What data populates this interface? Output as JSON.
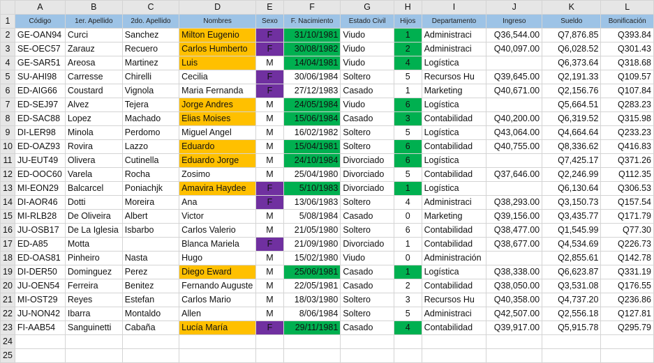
{
  "columns": [
    "A",
    "B",
    "C",
    "D",
    "E",
    "F",
    "G",
    "H",
    "I",
    "J",
    "K",
    "L"
  ],
  "headers": [
    "Código",
    "1er. Apellido",
    "2do. Apellido",
    "Nombres",
    "Sexo",
    "F. Nacimiento",
    "Estado Civil",
    "Hijos",
    "Departamento",
    "Ingreso",
    "Sueldo",
    "Bonificación"
  ],
  "row_numbers": [
    "1",
    "2",
    "3",
    "4",
    "5",
    "6",
    "7",
    "8",
    "9",
    "10",
    "11",
    "12",
    "13",
    "14",
    "15",
    "16",
    "17",
    "18",
    "19",
    "20",
    "21",
    "22",
    "23",
    "24",
    "25"
  ],
  "highlight_colors": {
    "orange": "#ffc000",
    "purple": "#7030a0",
    "green": "#00b050",
    "header": "#9dc3e6"
  },
  "rows": [
    {
      "codigo": "GE-OAN94",
      "ap1": "Curci",
      "ap2": "Sanchez",
      "nombres": "Milton Eugenio",
      "sexo": "F",
      "fnac": "31/10/1981",
      "estado": "Viudo",
      "hijos": "1",
      "depto": "Administraci",
      "ingreso": "Q36,544.00",
      "sueldo": "Q7,876.85",
      "bonif": "Q393.84",
      "hl_nombre": true,
      "hl_sexo": true,
      "hl_fecha": true,
      "hl_hijos": true
    },
    {
      "codigo": "SE-OEC57",
      "ap1": "Zarauz",
      "ap2": "Recuero",
      "nombres": "Carlos Humberto",
      "sexo": "F",
      "fnac": "30/08/1982",
      "estado": "Viudo",
      "hijos": "2",
      "depto": "Administraci",
      "ingreso": "Q40,097.00",
      "sueldo": "Q6,028.52",
      "bonif": "Q301.43",
      "hl_nombre": true,
      "hl_sexo": true,
      "hl_fecha": true,
      "hl_hijos": true
    },
    {
      "codigo": "GE-SAR51",
      "ap1": "Areosa",
      "ap2": "Martinez",
      "nombres": "Luis",
      "sexo": "M",
      "fnac": "14/04/1981",
      "estado": "Viudo",
      "hijos": "4",
      "depto": "Logística",
      "ingreso": "",
      "sueldo": "Q6,373.64",
      "bonif": "Q318.68",
      "hl_nombre": true,
      "hl_sexo": false,
      "hl_fecha": true,
      "hl_hijos": true
    },
    {
      "codigo": "SU-AHI98",
      "ap1": "Carresse",
      "ap2": "Chirelli",
      "nombres": "Cecilia",
      "sexo": "F",
      "fnac": "30/06/1984",
      "estado": "Soltero",
      "hijos": "5",
      "depto": "Recursos Hu",
      "ingreso": "Q39,645.00",
      "sueldo": "Q2,191.33",
      "bonif": "Q109.57",
      "hl_nombre": false,
      "hl_sexo": true,
      "hl_fecha": false,
      "hl_hijos": false
    },
    {
      "codigo": "ED-AIG66",
      "ap1": "Coustard",
      "ap2": "Vignola",
      "nombres": "Maria Fernanda",
      "sexo": "F",
      "fnac": "27/12/1983",
      "estado": "Casado",
      "hijos": "1",
      "depto": "Marketing",
      "ingreso": "Q40,671.00",
      "sueldo": "Q2,156.76",
      "bonif": "Q107.84",
      "hl_nombre": false,
      "hl_sexo": true,
      "hl_fecha": false,
      "hl_hijos": false
    },
    {
      "codigo": "ED-SEJ97",
      "ap1": "Alvez",
      "ap2": "Tejera",
      "nombres": "Jorge Andres",
      "sexo": "M",
      "fnac": "24/05/1984",
      "estado": "Viudo",
      "hijos": "6",
      "depto": "Logística",
      "ingreso": "",
      "sueldo": "Q5,664.51",
      "bonif": "Q283.23",
      "hl_nombre": true,
      "hl_sexo": false,
      "hl_fecha": true,
      "hl_hijos": true
    },
    {
      "codigo": "ED-SAC88",
      "ap1": "Lopez",
      "ap2": "Machado",
      "nombres": "Elias Moises",
      "sexo": "M",
      "fnac": "15/06/1984",
      "estado": "Casado",
      "hijos": "3",
      "depto": "Contabilidad",
      "ingreso": "Q40,200.00",
      "sueldo": "Q6,319.52",
      "bonif": "Q315.98",
      "hl_nombre": true,
      "hl_sexo": false,
      "hl_fecha": true,
      "hl_hijos": true
    },
    {
      "codigo": "DI-LER98",
      "ap1": "Minola",
      "ap2": "Perdomo",
      "nombres": "Miguel Angel",
      "sexo": "M",
      "fnac": "16/02/1982",
      "estado": "Soltero",
      "hijos": "5",
      "depto": "Logística",
      "ingreso": "Q43,064.00",
      "sueldo": "Q4,664.64",
      "bonif": "Q233.23",
      "hl_nombre": false,
      "hl_sexo": false,
      "hl_fecha": false,
      "hl_hijos": false
    },
    {
      "codigo": "ED-OAZ93",
      "ap1": "Rovira",
      "ap2": "Lazzo",
      "nombres": "Eduardo",
      "sexo": "M",
      "fnac": "15/04/1981",
      "estado": "Soltero",
      "hijos": "6",
      "depto": "Contabilidad",
      "ingreso": "Q40,755.00",
      "sueldo": "Q8,336.62",
      "bonif": "Q416.83",
      "hl_nombre": true,
      "hl_sexo": false,
      "hl_fecha": true,
      "hl_hijos": true
    },
    {
      "codigo": "JU-EUT49",
      "ap1": "Olivera",
      "ap2": "Cutinella",
      "nombres": "Eduardo Jorge",
      "sexo": "M",
      "fnac": "24/10/1984",
      "estado": "Divorciado",
      "hijos": "6",
      "depto": "Logística",
      "ingreso": "",
      "sueldo": "Q7,425.17",
      "bonif": "Q371.26",
      "hl_nombre": true,
      "hl_sexo": false,
      "hl_fecha": true,
      "hl_hijos": true
    },
    {
      "codigo": "ED-OOC60",
      "ap1": "Varela",
      "ap2": "Rocha",
      "nombres": "Zosimo",
      "sexo": "M",
      "fnac": "25/04/1980",
      "estado": "Divorciado",
      "hijos": "5",
      "depto": "Contabilidad",
      "ingreso": "Q37,646.00",
      "sueldo": "Q2,246.99",
      "bonif": "Q112.35",
      "hl_nombre": false,
      "hl_sexo": false,
      "hl_fecha": false,
      "hl_hijos": false
    },
    {
      "codigo": "MI-EON29",
      "ap1": "Balcarcel",
      "ap2": "Poniachjk",
      "nombres": "Amavira Haydee",
      "sexo": "F",
      "fnac": "5/10/1983",
      "estado": "Divorciado",
      "hijos": "1",
      "depto": "Logística",
      "ingreso": "",
      "sueldo": "Q6,130.64",
      "bonif": "Q306.53",
      "hl_nombre": true,
      "hl_sexo": true,
      "hl_fecha": true,
      "hl_hijos": true
    },
    {
      "codigo": "DI-AOR46",
      "ap1": "Dotti",
      "ap2": "Moreira",
      "nombres": "Ana",
      "sexo": "F",
      "fnac": "13/06/1983",
      "estado": "Soltero",
      "hijos": "4",
      "depto": "Administraci",
      "ingreso": "Q38,293.00",
      "sueldo": "Q3,150.73",
      "bonif": "Q157.54",
      "hl_nombre": false,
      "hl_sexo": true,
      "hl_fecha": false,
      "hl_hijos": false
    },
    {
      "codigo": "MI-RLB28",
      "ap1": "De Oliveira",
      "ap2": "Albert",
      "nombres": "Victor",
      "sexo": "M",
      "fnac": "5/08/1984",
      "estado": "Casado",
      "hijos": "0",
      "depto": "Marketing",
      "ingreso": "Q39,156.00",
      "sueldo": "Q3,435.77",
      "bonif": "Q171.79",
      "hl_nombre": false,
      "hl_sexo": false,
      "hl_fecha": false,
      "hl_hijos": false
    },
    {
      "codigo": "JU-OSB17",
      "ap1": "De La Iglesia",
      "ap2": "Isbarbo",
      "nombres": "Carlos Valerio",
      "sexo": "M",
      "fnac": "21/05/1980",
      "estado": "Soltero",
      "hijos": "6",
      "depto": "Contabilidad",
      "ingreso": "Q38,477.00",
      "sueldo": "Q1,545.99",
      "bonif": "Q77.30",
      "hl_nombre": false,
      "hl_sexo": false,
      "hl_fecha": false,
      "hl_hijos": false
    },
    {
      "codigo": "ED-A85",
      "ap1": "Motta",
      "ap2": "",
      "nombres": "Blanca Mariela",
      "sexo": "F",
      "fnac": "21/09/1980",
      "estado": "Divorciado",
      "hijos": "1",
      "depto": "Contabilidad",
      "ingreso": "Q38,677.00",
      "sueldo": "Q4,534.69",
      "bonif": "Q226.73",
      "hl_nombre": false,
      "hl_sexo": true,
      "hl_fecha": false,
      "hl_hijos": false
    },
    {
      "codigo": "ED-OAS81",
      "ap1": "Pinheiro",
      "ap2": "Nasta",
      "nombres": "Hugo",
      "sexo": "M",
      "fnac": "15/02/1980",
      "estado": "Viudo",
      "hijos": "0",
      "depto": "Administración",
      "ingreso": "",
      "sueldo": "Q2,855.61",
      "bonif": "Q142.78",
      "hl_nombre": false,
      "hl_sexo": false,
      "hl_fecha": false,
      "hl_hijos": false
    },
    {
      "codigo": "DI-DER50",
      "ap1": "Dominguez",
      "ap2": "Perez",
      "nombres": "Diego Eward",
      "sexo": "M",
      "fnac": "25/06/1981",
      "estado": "Casado",
      "hijos": "1",
      "depto": "Logística",
      "ingreso": "Q38,338.00",
      "sueldo": "Q6,623.87",
      "bonif": "Q331.19",
      "hl_nombre": true,
      "hl_sexo": false,
      "hl_fecha": true,
      "hl_hijos": true
    },
    {
      "codigo": "JU-OEN54",
      "ap1": "Ferreira",
      "ap2": "Benitez",
      "nombres": "Fernando Auguste",
      "sexo": "M",
      "fnac": "22/05/1981",
      "estado": "Casado",
      "hijos": "2",
      "depto": "Contabilidad",
      "ingreso": "Q38,050.00",
      "sueldo": "Q3,531.08",
      "bonif": "Q176.55",
      "hl_nombre": false,
      "hl_sexo": false,
      "hl_fecha": false,
      "hl_hijos": false
    },
    {
      "codigo": "MI-OST29",
      "ap1": "Reyes",
      "ap2": "Estefan",
      "nombres": "Carlos Mario",
      "sexo": "M",
      "fnac": "18/03/1980",
      "estado": "Soltero",
      "hijos": "3",
      "depto": "Recursos Hu",
      "ingreso": "Q40,358.00",
      "sueldo": "Q4,737.20",
      "bonif": "Q236.86",
      "hl_nombre": false,
      "hl_sexo": false,
      "hl_fecha": false,
      "hl_hijos": false
    },
    {
      "codigo": "JU-NON42",
      "ap1": "Ibarra",
      "ap2": "Montaldo",
      "nombres": "Allen",
      "sexo": "M",
      "fnac": "8/06/1984",
      "estado": "Soltero",
      "hijos": "5",
      "depto": "Administraci",
      "ingreso": "Q42,507.00",
      "sueldo": "Q2,556.18",
      "bonif": "Q127.81",
      "hl_nombre": false,
      "hl_sexo": false,
      "hl_fecha": false,
      "hl_hijos": false
    },
    {
      "codigo": "FI-AAB54",
      "ap1": "Sanguinetti",
      "ap2": "Cabaña",
      "nombres": "Lucía María",
      "sexo": "F",
      "fnac": "29/11/1981",
      "estado": "Casado",
      "hijos": "4",
      "depto": "Contabilidad",
      "ingreso": "Q39,917.00",
      "sueldo": "Q5,915.78",
      "bonif": "Q295.79",
      "hl_nombre": true,
      "hl_sexo": true,
      "hl_fecha": true,
      "hl_hijos": true
    }
  ]
}
